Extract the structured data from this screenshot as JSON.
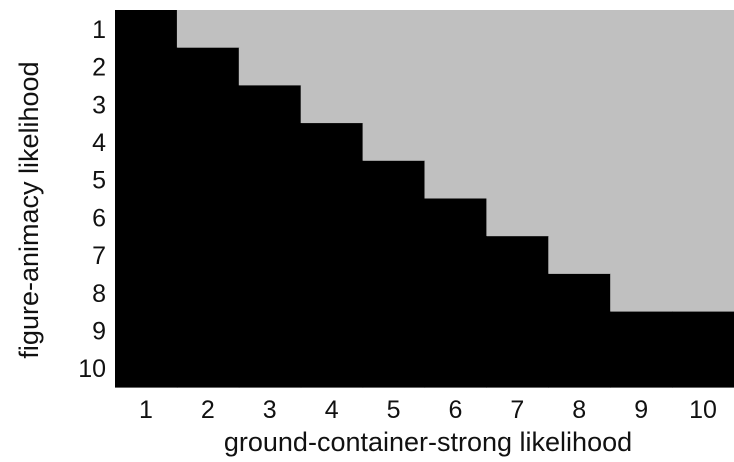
{
  "chart_data": {
    "type": "heatmap",
    "title": "",
    "xlabel": "ground-container-strong likelihood",
    "ylabel": "figure-animacy likelihood",
    "x_categories": [
      "1",
      "2",
      "3",
      "4",
      "5",
      "6",
      "7",
      "8",
      "9",
      "10"
    ],
    "y_categories": [
      "1",
      "2",
      "3",
      "4",
      "5",
      "6",
      "7",
      "8",
      "9",
      "10"
    ],
    "values": [
      [
        1,
        0,
        0,
        0,
        0,
        0,
        0,
        0,
        0,
        0
      ],
      [
        1,
        1,
        0,
        0,
        0,
        0,
        0,
        0,
        0,
        0
      ],
      [
        1,
        1,
        1,
        0,
        0,
        0,
        0,
        0,
        0,
        0
      ],
      [
        1,
        1,
        1,
        1,
        0,
        0,
        0,
        0,
        0,
        0
      ],
      [
        1,
        1,
        1,
        1,
        1,
        0,
        0,
        0,
        0,
        0
      ],
      [
        1,
        1,
        1,
        1,
        1,
        1,
        0,
        0,
        0,
        0
      ],
      [
        1,
        1,
        1,
        1,
        1,
        1,
        1,
        0,
        0,
        0
      ],
      [
        1,
        1,
        1,
        1,
        1,
        1,
        1,
        1,
        0,
        0
      ],
      [
        1,
        1,
        1,
        1,
        1,
        1,
        1,
        1,
        1,
        1
      ],
      [
        1,
        1,
        1,
        1,
        1,
        1,
        1,
        1,
        1,
        1
      ]
    ],
    "colors": {
      "1": "#000000",
      "0": "#c0c0c0"
    },
    "grid": false,
    "legend": "none"
  }
}
